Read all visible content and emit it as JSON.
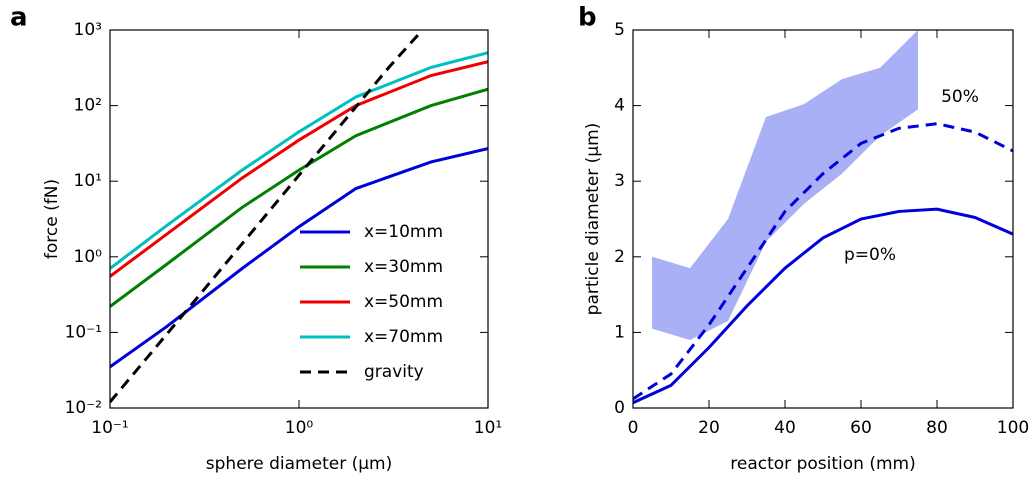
{
  "chart_data": [
    {
      "type": "line",
      "panel_label": "a",
      "xlabel": "sphere diameter (μm)",
      "ylabel": "force (fN)",
      "xscale": "log",
      "yscale": "log",
      "xlim": [
        0.1,
        10
      ],
      "ylim": [
        0.01,
        1000
      ],
      "xticks": [
        {
          "value": 0.1,
          "label": "10⁻¹"
        },
        {
          "value": 1,
          "label": "10⁰"
        },
        {
          "value": 10,
          "label": "10¹"
        }
      ],
      "yticks": [
        {
          "value": 0.01,
          "label": "10⁻²"
        },
        {
          "value": 0.1,
          "label": "10⁻¹"
        },
        {
          "value": 1,
          "label": "10⁰"
        },
        {
          "value": 10,
          "label": "10¹"
        },
        {
          "value": 100,
          "label": "10²"
        },
        {
          "value": 1000,
          "label": "10³"
        }
      ],
      "legend": "lower right",
      "series": [
        {
          "name": "x=10mm",
          "color": "#0000dd",
          "x": [
            0.1,
            0.2,
            0.5,
            1,
            2,
            5,
            10
          ],
          "values": [
            0.035,
            0.12,
            0.7,
            2.5,
            8,
            18,
            27
          ]
        },
        {
          "name": "x=30mm",
          "color": "#007f00",
          "x": [
            0.1,
            0.2,
            0.5,
            1,
            2,
            5,
            10
          ],
          "values": [
            0.22,
            0.8,
            4.5,
            14,
            40,
            100,
            165
          ]
        },
        {
          "name": "x=50mm",
          "color": "#ee0000",
          "x": [
            0.1,
            0.2,
            0.5,
            1,
            2,
            5,
            10
          ],
          "values": [
            0.55,
            2,
            11,
            35,
            100,
            250,
            380
          ]
        },
        {
          "name": "x=70mm",
          "color": "#00bfbf",
          "x": [
            0.1,
            0.2,
            0.5,
            1,
            2,
            5,
            10
          ],
          "values": [
            0.7,
            2.6,
            14,
            45,
            130,
            320,
            500
          ]
        },
        {
          "name": "gravity",
          "color": "#000000",
          "dash": true,
          "x": [
            0.1,
            0.3,
            1,
            3,
            4.5
          ],
          "values": [
            0.012,
            0.32,
            12,
            324,
            1000
          ]
        }
      ]
    },
    {
      "type": "line",
      "panel_label": "b",
      "xlabel": "reactor position (mm)",
      "ylabel": "particle diameter (μm)",
      "xlim": [
        0,
        100
      ],
      "ylim": [
        0,
        5
      ],
      "xticks": [
        0,
        20,
        40,
        60,
        80,
        100
      ],
      "yticks": [
        0,
        1,
        2,
        3,
        4,
        5
      ],
      "x": [
        0,
        10,
        20,
        30,
        40,
        50,
        60,
        70,
        80,
        90,
        100
      ],
      "band": {
        "color": "#aab0f6",
        "x": [
          5,
          15,
          25,
          35,
          45,
          55,
          65,
          75
        ],
        "lower": [
          1.05,
          0.9,
          1.15,
          2.2,
          2.7,
          3.1,
          3.6,
          3.95
        ],
        "upper": [
          2,
          1.85,
          2.5,
          3.85,
          4.02,
          4.35,
          4.5,
          5
        ]
      },
      "series": [
        {
          "name": "p=0%",
          "color": "#0000dd",
          "values": [
            0.07,
            0.3,
            0.8,
            1.35,
            1.85,
            2.25,
            2.5,
            2.6,
            2.63,
            2.52,
            2.3
          ]
        },
        {
          "name": "50%",
          "color": "#0000dd",
          "dash": true,
          "values": [
            0.12,
            0.45,
            1.1,
            1.85,
            2.6,
            3.1,
            3.5,
            3.7,
            3.76,
            3.65,
            3.4
          ]
        }
      ]
    }
  ]
}
